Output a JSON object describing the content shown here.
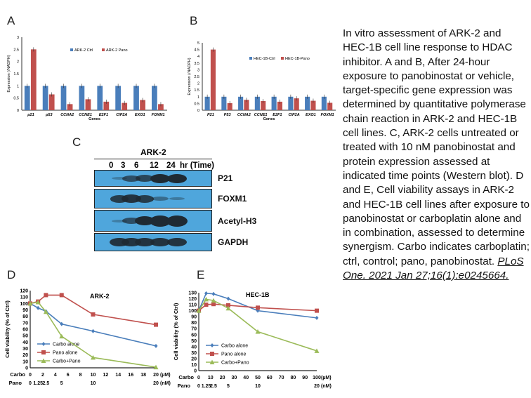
{
  "caption": {
    "text": "In vitro assessment of ARK-2 and HEC-1B cell line response to HDAC inhibitor. A and B, After 24-hour exposure to panobinostat or vehicle, target-specific gene expression was determined by quantitative polymerase chain reaction in ARK-2 and HEC-1B cell lines. C, ARK-2 cells untreated or treated with 10 nM panobinostat and protein expression assessed at indicated time points (Western blot). D and E, Cell viability assays in ARK-2 and HEC-1B cell lines after exposure to panobinostat or carboplatin alone and in combination, assessed to determine synergism. Carbo indicates carboplatin; ctrl, control; pano, panobinostat.",
    "citation": "PLoS One. 2021 Jan 27;16(1):e0245664."
  },
  "panels": {
    "a": "A",
    "b": "B",
    "c": "C",
    "d": "D",
    "e": "E"
  },
  "blot": {
    "cell_line": "ARK-2",
    "times": [
      "0",
      "3",
      "6",
      "12",
      "24",
      "hr (Time)"
    ],
    "rows": [
      {
        "label": "P21",
        "intensity": [
          0.1,
          0.6,
          0.7,
          1,
          1
        ]
      },
      {
        "label": "FOXM1",
        "intensity": [
          0.8,
          0.9,
          0.8,
          0.3,
          0.15
        ]
      },
      {
        "label": "Acetyl-H3",
        "intensity": [
          0.1,
          0.6,
          1,
          1.3,
          1.3
        ]
      },
      {
        "label": "GAPDH",
        "intensity": [
          0.9,
          0.9,
          0.9,
          0.9,
          0.9
        ]
      }
    ],
    "background": "#4fa6dc"
  },
  "chart_data": [
    {
      "type": "bar",
      "id": "A",
      "categories": [
        "p21",
        "p53",
        "CCNA2",
        "CCNE1",
        "E2F1",
        "CIP2A",
        "EXO1",
        "FOXM1"
      ],
      "xlabel": "Genes",
      "ylabel": "Expression (/NADPH)",
      "ylim": [
        0,
        3
      ],
      "yticks": [
        "0",
        "0.5",
        "1",
        "1.5",
        "2",
        "2.5",
        "3"
      ],
      "legend": "top-center",
      "series": [
        {
          "name": "ARK-2 Ctrl",
          "color": "#4a7ebb",
          "values": [
            1,
            1,
            1,
            1,
            1,
            1,
            1,
            1
          ]
        },
        {
          "name": "ARK-2 Pano",
          "color": "#c0504d",
          "values": [
            2.5,
            0.65,
            0.25,
            0.45,
            0.35,
            0.3,
            0.42,
            0.25
          ]
        }
      ]
    },
    {
      "type": "bar",
      "id": "B",
      "categories": [
        "P21",
        "P53",
        "CCNA2",
        "CCNE1",
        "E2F1",
        "CIP2A",
        "EXO1",
        "FOXM1"
      ],
      "xlabel": "Genes",
      "ylabel": "Expression (/NADPH)",
      "ylim": [
        0,
        5
      ],
      "yticks": [
        "0",
        "0.5",
        "1",
        "1.5",
        "2",
        "2.5",
        "3",
        "3.5",
        "4",
        "4.5",
        "5"
      ],
      "legend": "top-center",
      "series": [
        {
          "name": "HEC-1B-Ctrl",
          "color": "#4a7ebb",
          "values": [
            1,
            1,
            1,
            1,
            1,
            1,
            1,
            1
          ]
        },
        {
          "name": "HEC-1B-Pano",
          "color": "#c0504d",
          "values": [
            4.5,
            0.52,
            0.77,
            0.68,
            0.63,
            0.88,
            0.7,
            0.55
          ]
        }
      ]
    },
    {
      "type": "line",
      "id": "D",
      "title": "ARK-2",
      "ylabel": "Cell viability (% of Ctrl)",
      "ylim": [
        0,
        120
      ],
      "xlim": [
        0,
        20
      ],
      "yticks": [
        "0",
        "10",
        "20",
        "30",
        "40",
        "50",
        "60",
        "70",
        "80",
        "90",
        "100",
        "110",
        "120"
      ],
      "xticks_carbo": {
        "label": "Carbo",
        "unit": "(µM)",
        "ticks": [
          "0",
          "2",
          "4",
          "6",
          "8",
          "10",
          "12",
          "14",
          "16",
          "18",
          "20"
        ]
      },
      "xticks_pano": {
        "label": "Pano",
        "unit": "(nM)",
        "ticks": [
          [
            "0",
            0
          ],
          [
            "1.25",
            1.25
          ],
          [
            "2.5",
            2.5
          ],
          [
            "5",
            5
          ],
          [
            "10",
            10
          ],
          [
            "20",
            20
          ]
        ]
      },
      "x": [
        0,
        1.25,
        2.5,
        5,
        10,
        20
      ],
      "legend": "bottom-left",
      "series": [
        {
          "name": "Carbo alone",
          "color": "#4a7ebb",
          "marker": "diamond",
          "values": [
            100,
            93,
            88,
            68,
            57,
            34
          ]
        },
        {
          "name": "Pano alone",
          "color": "#c0504d",
          "marker": "square",
          "values": [
            100,
            103,
            113,
            113,
            83,
            67
          ]
        },
        {
          "name": "Carbo+Pano",
          "color": "#9bbb59",
          "marker": "triangle",
          "values": [
            100,
            102,
            87,
            49,
            16,
            1
          ]
        }
      ]
    },
    {
      "type": "line",
      "id": "E",
      "title": "HEC-1B",
      "ylabel": "Cell viability (% of Ctrl)",
      "ylim": [
        0,
        130
      ],
      "xlim": [
        0,
        100
      ],
      "yticks": [
        "0",
        "10",
        "20",
        "30",
        "40",
        "50",
        "60",
        "70",
        "80",
        "90",
        "100",
        "110",
        "120",
        "130"
      ],
      "xticks_carbo": {
        "label": "Carbo",
        "unit": "(µM)",
        "ticks": [
          "0",
          "10",
          "20",
          "30",
          "40",
          "50",
          "60",
          "70",
          "80",
          "90",
          "100"
        ]
      },
      "xticks_pano": {
        "label": "Pano",
        "unit": "(nM)",
        "ticks": [
          [
            "0",
            0
          ],
          [
            "1.25",
            6.25
          ],
          [
            "2.5",
            12.5
          ],
          [
            "5",
            25
          ],
          [
            "10",
            50
          ],
          [
            "20",
            100
          ]
        ]
      },
      "x": [
        0,
        6.25,
        12.5,
        25,
        50,
        100
      ],
      "legend": "bottom-left",
      "series": [
        {
          "name": "Carbo alone",
          "color": "#4a7ebb",
          "marker": "diamond",
          "values": [
            100,
            129,
            128,
            120,
            100,
            88
          ]
        },
        {
          "name": "Pano alone",
          "color": "#c0504d",
          "marker": "square",
          "values": [
            100,
            110,
            111,
            109,
            105,
            100
          ]
        },
        {
          "name": "Carbo+Pano",
          "color": "#9bbb59",
          "marker": "triangle",
          "values": [
            100,
            119,
            117,
            104,
            65,
            33
          ]
        }
      ]
    }
  ]
}
